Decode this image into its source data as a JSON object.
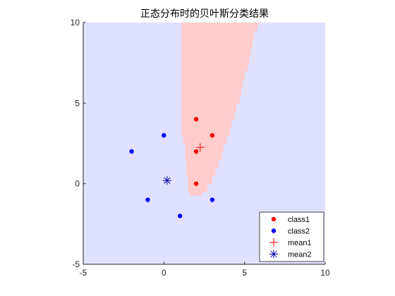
{
  "chart_data": {
    "type": "scatter",
    "title": "正态分布时的贝叶斯分类结果",
    "xlim": [
      -5,
      10
    ],
    "ylim": [
      -5,
      10
    ],
    "xticks": [
      "-5",
      "0",
      "5",
      "10"
    ],
    "yticks": [
      "-5",
      "0",
      "5",
      "10"
    ],
    "grid": false,
    "legend_position": "bottom-right",
    "decision_regions": [
      {
        "class": "class1",
        "color": "#ffcccc"
      },
      {
        "class": "class2",
        "color": "#e0e0ff"
      }
    ],
    "class1_region_bounds": {
      "rows": [
        {
          "y": [
            9.9,
            10.0
          ],
          "x": [
            1.1,
            5.9
          ]
        },
        {
          "y": [
            9.5,
            9.9
          ],
          "x": [
            1.1,
            5.8
          ]
        },
        {
          "y": [
            9.0,
            9.5
          ],
          "x": [
            1.1,
            5.6
          ]
        },
        {
          "y": [
            8.5,
            9.0
          ],
          "x": [
            1.1,
            5.5
          ]
        },
        {
          "y": [
            8.0,
            8.5
          ],
          "x": [
            1.1,
            5.4
          ]
        },
        {
          "y": [
            7.5,
            8.0
          ],
          "x": [
            1.1,
            5.3
          ]
        },
        {
          "y": [
            7.0,
            7.5
          ],
          "x": [
            1.1,
            5.2
          ]
        },
        {
          "y": [
            6.5,
            7.0
          ],
          "x": [
            1.1,
            5.0
          ]
        },
        {
          "y": [
            6.0,
            6.5
          ],
          "x": [
            1.1,
            4.9
          ]
        },
        {
          "y": [
            5.5,
            6.0
          ],
          "x": [
            1.1,
            4.8
          ]
        },
        {
          "y": [
            5.0,
            5.5
          ],
          "x": [
            1.1,
            4.7
          ]
        },
        {
          "y": [
            4.5,
            5.0
          ],
          "x": [
            1.1,
            4.5
          ]
        },
        {
          "y": [
            4.0,
            4.5
          ],
          "x": [
            1.1,
            4.4
          ]
        },
        {
          "y": [
            3.5,
            4.0
          ],
          "x": [
            1.1,
            4.2
          ]
        },
        {
          "y": [
            3.0,
            3.5
          ],
          "x": [
            1.1,
            4.1
          ]
        },
        {
          "y": [
            2.5,
            3.0
          ],
          "x": [
            1.2,
            3.9
          ]
        },
        {
          "y": [
            2.0,
            2.5
          ],
          "x": [
            1.3,
            3.7
          ]
        },
        {
          "y": [
            1.5,
            2.0
          ],
          "x": [
            1.3,
            3.6
          ]
        },
        {
          "y": [
            1.0,
            1.5
          ],
          "x": [
            1.4,
            3.4
          ]
        },
        {
          "y": [
            0.5,
            1.0
          ],
          "x": [
            1.4,
            3.2
          ]
        },
        {
          "y": [
            0.0,
            0.5
          ],
          "x": [
            1.5,
            3.0
          ]
        },
        {
          "y": [
            -0.5,
            0.0
          ],
          "x": [
            1.5,
            2.7
          ]
        },
        {
          "y": [
            -0.7,
            -0.5
          ],
          "x": [
            1.6,
            2.4
          ]
        }
      ]
    },
    "series": [
      {
        "name": "class1",
        "color": "#ff0000",
        "marker": "circle",
        "points": [
          [
            2,
            4
          ],
          [
            3,
            3
          ],
          [
            2,
            2
          ],
          [
            2,
            0
          ]
        ]
      },
      {
        "name": "class2",
        "color": "#0000ff",
        "marker": "circle",
        "points": [
          [
            0,
            3
          ],
          [
            -2,
            2
          ],
          [
            -1,
            -1
          ],
          [
            3,
            -1
          ],
          [
            1,
            -2
          ]
        ]
      },
      {
        "name": "mean1",
        "color": "#ff0000",
        "marker": "plus",
        "points": [
          [
            2.25,
            2.25
          ]
        ]
      },
      {
        "name": "mean2",
        "color": "#0000aa",
        "marker": "asterisk",
        "points": [
          [
            0.2,
            0.2
          ]
        ]
      }
    ]
  }
}
